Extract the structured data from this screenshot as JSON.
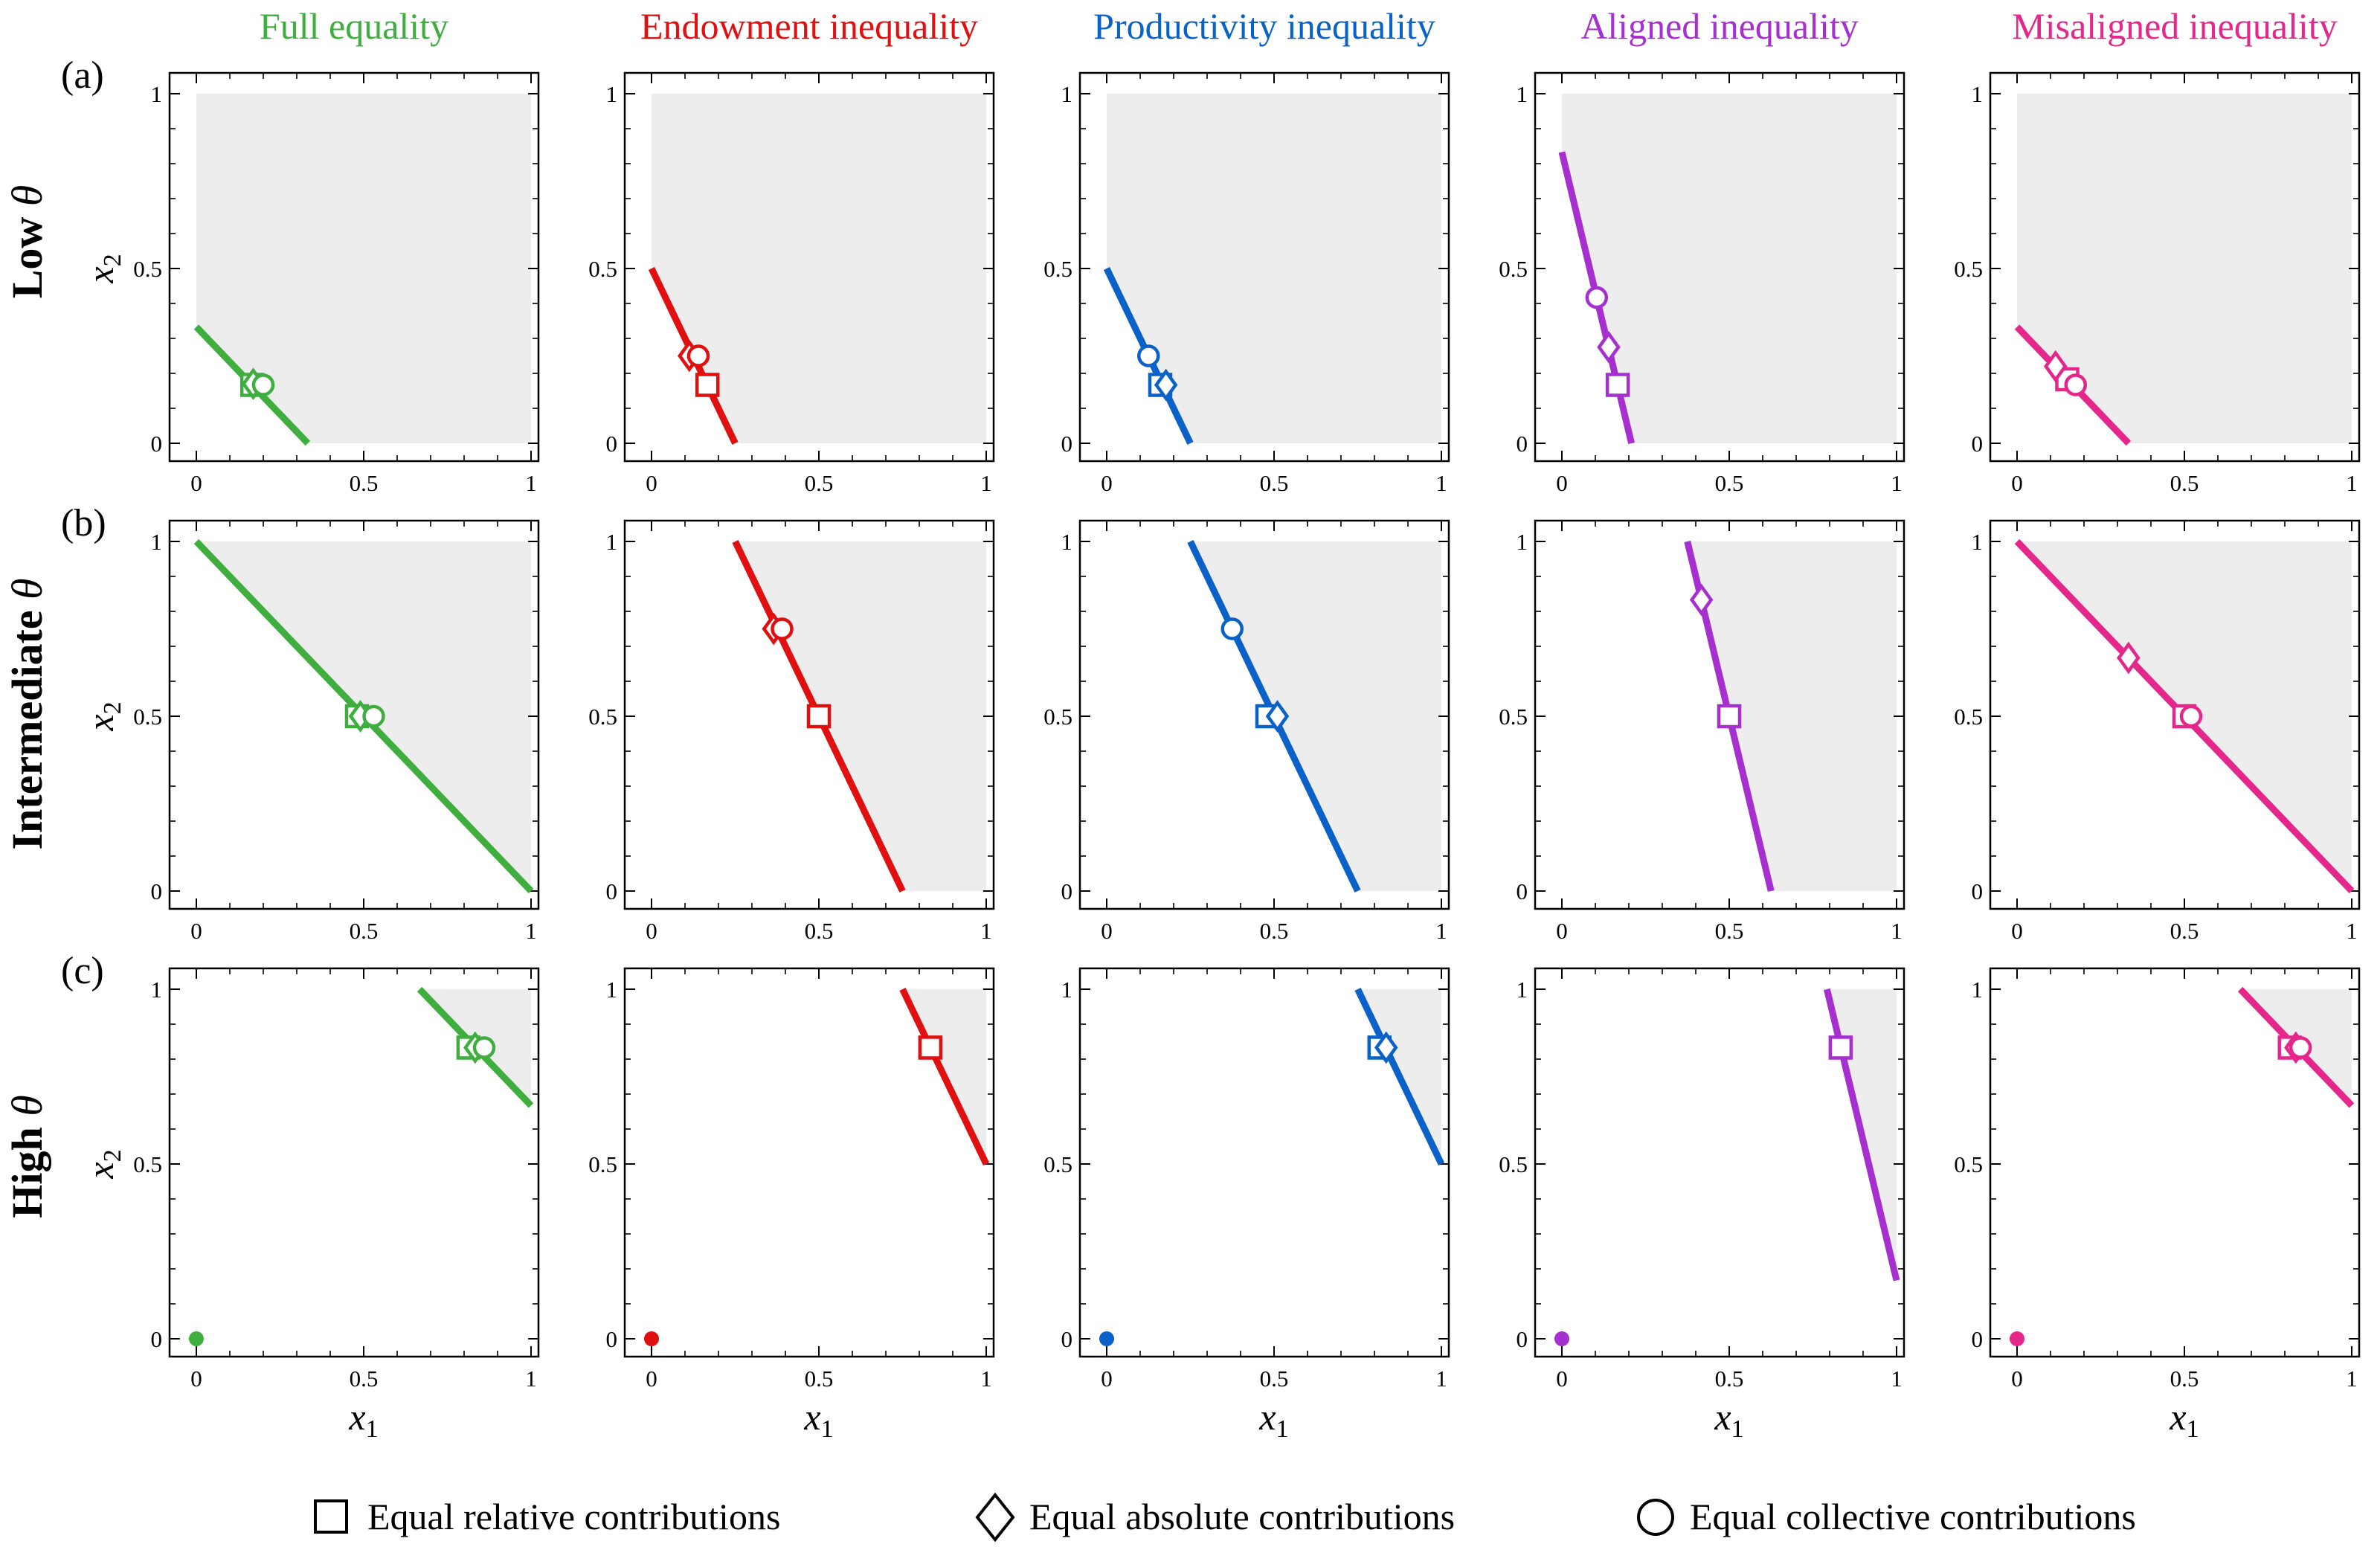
{
  "legend": {
    "square": "Equal relative contributions",
    "diamond": "Equal absolute contributions",
    "circle": "Equal collective contributions"
  },
  "rows": [
    {
      "label_main": "Low",
      "label_sym": "θ",
      "letter": "(a)"
    },
    {
      "label_main": "Intermediate",
      "label_sym": "θ",
      "letter": "(b)"
    },
    {
      "label_main": "High",
      "label_sym": "θ",
      "letter": "(c)"
    }
  ],
  "columns": [
    {
      "title": "Full equality",
      "color": "#3fae3f"
    },
    {
      "title": "Endowment inequality",
      "color": "#e01010"
    },
    {
      "title": "Productivity inequality",
      "color": "#0a62c8"
    },
    {
      "title": "Aligned inequality",
      "color": "#a62fd0"
    },
    {
      "title": "Misaligned inequality",
      "color": "#e5268a"
    }
  ],
  "axes": {
    "xlabel_base": "x",
    "xlabel_sub": "1",
    "ylabel_base": "x",
    "ylabel_sub": "2",
    "ticks": [
      "0",
      "0.5",
      "1"
    ],
    "xlim": [
      0,
      1
    ],
    "ylim": [
      0,
      1
    ]
  },
  "chart_data": [
    {
      "type": "line",
      "row": 0,
      "col": 0,
      "line": [
        [
          0,
          0.333
        ],
        [
          0.333,
          0
        ]
      ],
      "shaded": "above",
      "square": [
        0.167,
        0.167
      ],
      "diamond": [
        0.17,
        0.17
      ],
      "circle": [
        0.2,
        0.167
      ]
    },
    {
      "type": "line",
      "row": 0,
      "col": 1,
      "line": [
        [
          0,
          0.5
        ],
        [
          0.25,
          0
        ]
      ],
      "shaded": "above",
      "square": [
        0.167,
        0.167
      ],
      "diamond": [
        0.113,
        0.25
      ],
      "circle": [
        0.14,
        0.25
      ]
    },
    {
      "type": "line",
      "row": 0,
      "col": 2,
      "line": [
        [
          0,
          0.5
        ],
        [
          0.25,
          0
        ]
      ],
      "shaded": "above",
      "square": [
        0.16,
        0.167
      ],
      "diamond": [
        0.177,
        0.167
      ],
      "circle": [
        0.125,
        0.25
      ]
    },
    {
      "type": "line",
      "row": 0,
      "col": 3,
      "line": [
        [
          0,
          0.833
        ],
        [
          0.208,
          0
        ]
      ],
      "shaded": "above",
      "square": [
        0.167,
        0.167
      ],
      "diamond": [
        0.14,
        0.275
      ],
      "circle": [
        0.104,
        0.417
      ]
    },
    {
      "type": "line",
      "row": 0,
      "col": 4,
      "line": [
        [
          0,
          0.333
        ],
        [
          0.333,
          0
        ]
      ],
      "shaded": "above",
      "square": [
        0.15,
        0.183
      ],
      "diamond": [
        0.115,
        0.22
      ],
      "circle": [
        0.175,
        0.167
      ]
    },
    {
      "type": "line",
      "row": 1,
      "col": 0,
      "line": [
        [
          0,
          1
        ],
        [
          1,
          0
        ]
      ],
      "shaded": "above",
      "square": [
        0.48,
        0.5
      ],
      "diamond": [
        0.49,
        0.5
      ],
      "circle": [
        0.53,
        0.5
      ]
    },
    {
      "type": "line",
      "row": 1,
      "col": 1,
      "line": [
        [
          0.25,
          1
        ],
        [
          0.75,
          0
        ]
      ],
      "shaded": "above",
      "square": [
        0.5,
        0.5
      ],
      "diamond": [
        0.365,
        0.75
      ],
      "circle": [
        0.39,
        0.75
      ]
    },
    {
      "type": "line",
      "row": 1,
      "col": 2,
      "line": [
        [
          0.25,
          1
        ],
        [
          0.75,
          0
        ]
      ],
      "shaded": "above",
      "square": [
        0.48,
        0.5
      ],
      "diamond": [
        0.51,
        0.5
      ],
      "circle": [
        0.375,
        0.75
      ]
    },
    {
      "type": "line",
      "row": 1,
      "col": 3,
      "line": [
        [
          0.375,
          1
        ],
        [
          0.625,
          0
        ]
      ],
      "shaded": "above",
      "square": [
        0.5,
        0.5
      ],
      "diamond": [
        0.417,
        0.833
      ],
      "circle": null
    },
    {
      "type": "line",
      "row": 1,
      "col": 4,
      "line": [
        [
          0,
          1
        ],
        [
          1,
          0
        ]
      ],
      "shaded": "above",
      "square": [
        0.5,
        0.5
      ],
      "diamond": [
        0.333,
        0.667
      ],
      "circle": [
        0.52,
        0.5
      ]
    },
    {
      "type": "line",
      "row": 2,
      "col": 0,
      "line": [
        [
          0.667,
          1
        ],
        [
          1,
          0.667
        ]
      ],
      "shaded": "above",
      "square": [
        0.813,
        0.833
      ],
      "diamond": [
        0.833,
        0.833
      ],
      "circle": [
        0.86,
        0.833
      ],
      "origin": true
    },
    {
      "type": "line",
      "row": 2,
      "col": 1,
      "line": [
        [
          0.75,
          1
        ],
        [
          1,
          0.5
        ]
      ],
      "shaded": "above",
      "square": [
        0.833,
        0.833
      ],
      "diamond": null,
      "circle": null,
      "origin": true
    },
    {
      "type": "line",
      "row": 2,
      "col": 2,
      "line": [
        [
          0.75,
          1
        ],
        [
          1,
          0.5
        ]
      ],
      "shaded": "above",
      "square": [
        0.815,
        0.833
      ],
      "diamond": [
        0.835,
        0.833
      ],
      "circle": null,
      "origin": true
    },
    {
      "type": "line",
      "row": 2,
      "col": 3,
      "line": [
        [
          0.792,
          1
        ],
        [
          1,
          0.167
        ]
      ],
      "shaded": "above",
      "square": [
        0.833,
        0.833
      ],
      "diamond": null,
      "circle": null,
      "origin": true
    },
    {
      "type": "line",
      "row": 2,
      "col": 4,
      "line": [
        [
          0.667,
          1
        ],
        [
          1,
          0.667
        ]
      ],
      "shaded": "above",
      "square": [
        0.815,
        0.833
      ],
      "diamond": [
        0.833,
        0.833
      ],
      "circle": [
        0.847,
        0.833
      ],
      "origin": true
    }
  ]
}
